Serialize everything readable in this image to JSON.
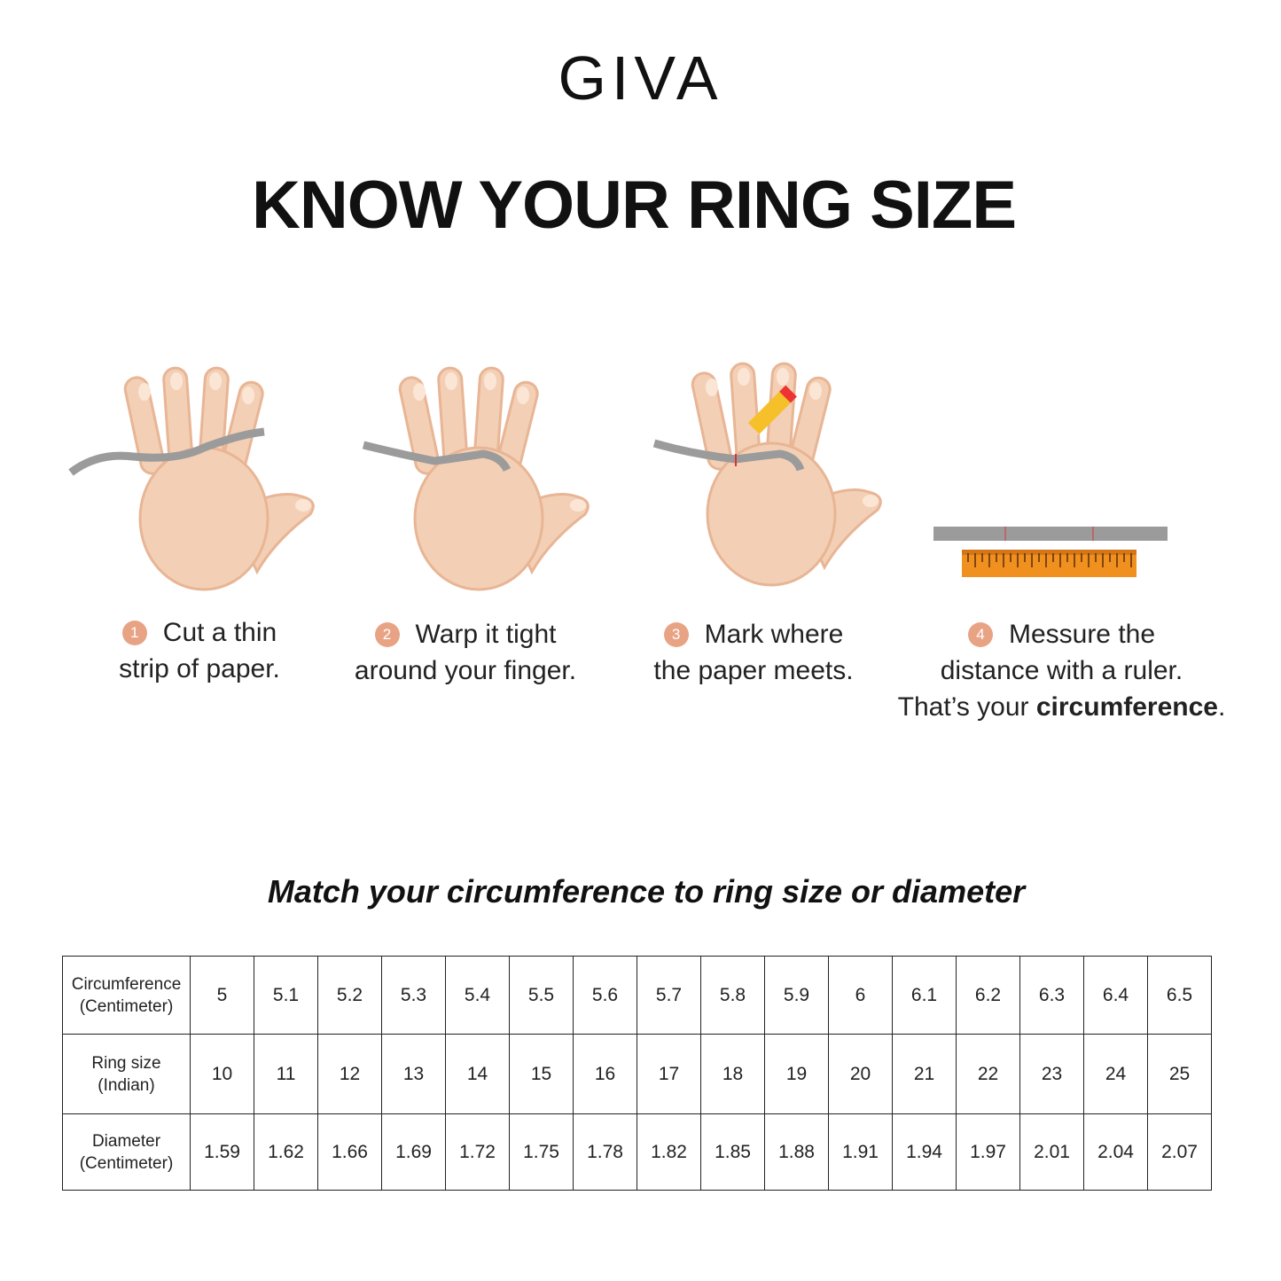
{
  "brand": "GIVA",
  "title": "KNOW YOUR RING SIZE",
  "steps": [
    {
      "num": "1",
      "line1": "Cut a thin",
      "line2": "strip of paper."
    },
    {
      "num": "2",
      "line1": "Warp it tight",
      "line2": "around your finger."
    },
    {
      "num": "3",
      "line1": "Mark where",
      "line2": "the paper meets."
    },
    {
      "num": "4",
      "line1": "Messure the",
      "line2": "distance with a ruler.",
      "line3_prefix": "That’s your ",
      "line3_bold": "circumference",
      "line3_suffix": "."
    }
  ],
  "colors": {
    "skin": "#f3d0b5",
    "skin_shade": "#e8b595",
    "paper": "#9b9b9b",
    "ruler": "#f0901f",
    "accent": "#e8a385"
  },
  "subtitle": "Match your circumference to ring size or diameter",
  "table": {
    "rows": [
      {
        "label1": "Circumference",
        "label2": "(Centimeter)",
        "values": [
          "5",
          "5.1",
          "5.2",
          "5.3",
          "5.4",
          "5.5",
          "5.6",
          "5.7",
          "5.8",
          "5.9",
          "6",
          "6.1",
          "6.2",
          "6.3",
          "6.4",
          "6.5"
        ]
      },
      {
        "label1": "Ring size",
        "label2": "(Indian)",
        "values": [
          "10",
          "11",
          "12",
          "13",
          "14",
          "15",
          "16",
          "17",
          "18",
          "19",
          "20",
          "21",
          "22",
          "23",
          "24",
          "25"
        ]
      },
      {
        "label1": "Diameter",
        "label2": "(Centimeter)",
        "values": [
          "1.59",
          "1.62",
          "1.66",
          "1.69",
          "1.72",
          "1.75",
          "1.78",
          "1.82",
          "1.85",
          "1.88",
          "1.91",
          "1.94",
          "1.97",
          "2.01",
          "2.04",
          "2.07"
        ]
      }
    ]
  }
}
